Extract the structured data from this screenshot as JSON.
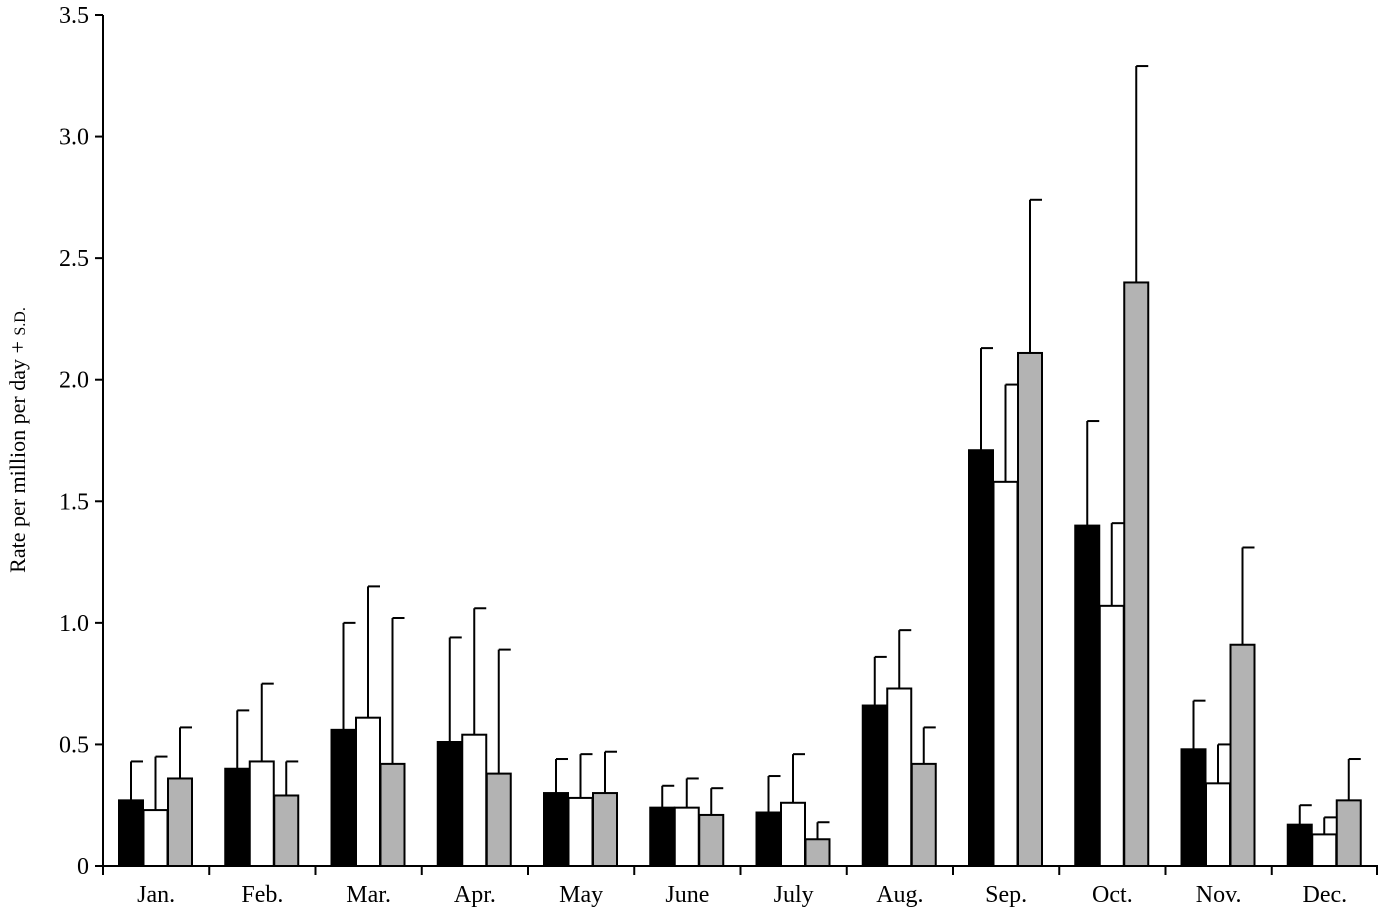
{
  "chart_data": {
    "type": "bar",
    "title": "",
    "xlabel": "",
    "ylabel": "Rate per million per day + ",
    "ylabel_suffix": "S.D.",
    "ylim": [
      0,
      3.5
    ],
    "yticks": [
      0,
      0.5,
      1.0,
      1.5,
      2.0,
      2.5,
      3.0,
      3.5
    ],
    "ytick_labels": [
      "0",
      "0.5",
      "1.0",
      "1.5",
      "2.0",
      "2.5",
      "3.0",
      "3.5"
    ],
    "grid": false,
    "legend": "none",
    "categories": [
      "Jan.",
      "Feb.",
      "Mar.",
      "Apr.",
      "May",
      "June",
      "July",
      "Aug.",
      "Sep.",
      "Oct.",
      "Nov.",
      "Dec."
    ],
    "series": [
      {
        "color": "#000000",
        "values": [
          0.27,
          0.4,
          0.56,
          0.51,
          0.3,
          0.24,
          0.22,
          0.66,
          1.71,
          1.4,
          0.48,
          0.17
        ],
        "sd_upper": [
          0.43,
          0.64,
          1.0,
          0.94,
          0.44,
          0.33,
          0.37,
          0.86,
          2.13,
          1.83,
          0.68,
          0.25
        ]
      },
      {
        "color": "#ffffff",
        "values": [
          0.23,
          0.43,
          0.61,
          0.54,
          0.28,
          0.24,
          0.26,
          0.73,
          1.58,
          1.07,
          0.34,
          0.13
        ],
        "sd_upper": [
          0.45,
          0.75,
          1.15,
          1.06,
          0.46,
          0.36,
          0.46,
          0.97,
          1.98,
          1.41,
          0.5,
          0.2
        ]
      },
      {
        "color": "#b3b3b3",
        "values": [
          0.36,
          0.29,
          0.42,
          0.38,
          0.3,
          0.21,
          0.11,
          0.42,
          2.11,
          2.4,
          0.91,
          0.27
        ],
        "sd_upper": [
          0.57,
          0.43,
          1.02,
          0.89,
          0.47,
          0.32,
          0.18,
          0.57,
          2.74,
          3.29,
          1.31,
          0.44
        ]
      }
    ]
  }
}
